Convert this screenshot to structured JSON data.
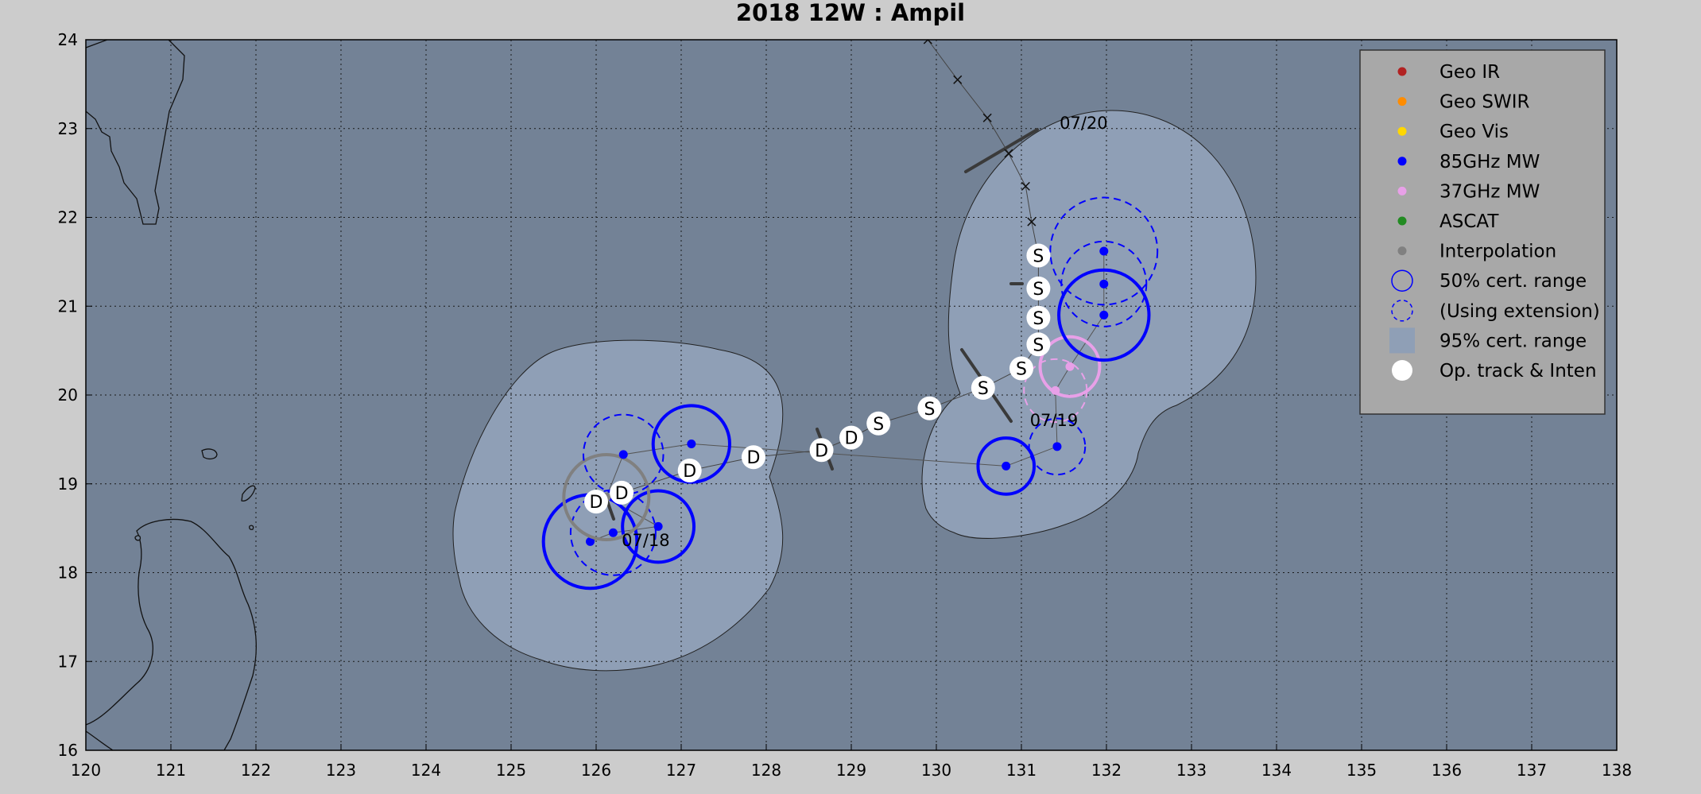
{
  "title": "2018  12W :  Ampil",
  "colors": {
    "background": "#cccccc",
    "ocean": "#738296",
    "confidence95": "#8f9fb6",
    "mw85": "#0000ff",
    "mw37": "#e8a0e8",
    "interp": "#808080",
    "geo_ir": "#b22222",
    "geo_swir": "#ff8c00",
    "geo_vis": "#ffd700",
    "ascat": "#228b22"
  },
  "axes": {
    "x_ticks": [
      "120",
      "121",
      "122",
      "123",
      "124",
      "125",
      "126",
      "127",
      "128",
      "129",
      "130",
      "131",
      "132",
      "133",
      "134",
      "135",
      "136",
      "137",
      "138"
    ],
    "y_ticks": [
      "16",
      "17",
      "18",
      "19",
      "20",
      "21",
      "22",
      "23",
      "24"
    ],
    "lon_range": [
      120,
      138
    ],
    "lat_range": [
      16,
      24
    ],
    "grid": true
  },
  "legend": {
    "position": "top-right",
    "items": [
      {
        "label": "Geo IR",
        "symbol": "dot",
        "color": "#b22222"
      },
      {
        "label": "Geo SWIR",
        "symbol": "dot",
        "color": "#ff8c00"
      },
      {
        "label": "Geo Vis",
        "symbol": "dot",
        "color": "#ffd700"
      },
      {
        "label": "85GHz MW",
        "symbol": "dot",
        "color": "#0000ff"
      },
      {
        "label": "37GHz MW",
        "symbol": "dot",
        "color": "#e8a0e8"
      },
      {
        "label": "ASCAT",
        "symbol": "dot",
        "color": "#228b22"
      },
      {
        "label": "Interpolation",
        "symbol": "dot",
        "color": "#808080"
      },
      {
        "label": "50% cert. range",
        "symbol": "circle",
        "color": "#0000ff"
      },
      {
        "label": "(Using extension)",
        "symbol": "dashed-circle",
        "color": "#0000ff"
      },
      {
        "label": "95% cert. range",
        "symbol": "square",
        "color": "#8f9fb6"
      },
      {
        "label": "Op. track & Inten",
        "symbol": "white-dot",
        "color": "#ffffff"
      }
    ]
  },
  "date_labels": [
    {
      "text": "07/18",
      "lon": 126.3,
      "lat": 18.3
    },
    {
      "text": "07/19",
      "lon": 131.1,
      "lat": 19.65
    },
    {
      "text": "07/20",
      "lon": 131.45,
      "lat": 23.0
    }
  ],
  "op_track": [
    {
      "lon": 126.0,
      "lat": 18.8,
      "label": "D"
    },
    {
      "lon": 126.3,
      "lat": 18.9,
      "label": "D"
    },
    {
      "lon": 127.1,
      "lat": 19.15,
      "label": "D"
    },
    {
      "lon": 127.85,
      "lat": 19.3,
      "label": "D"
    },
    {
      "lon": 128.65,
      "lat": 19.38,
      "label": "D"
    },
    {
      "lon": 129.0,
      "lat": 19.52,
      "label": "D"
    },
    {
      "lon": 129.32,
      "lat": 19.68,
      "label": "S"
    },
    {
      "lon": 129.92,
      "lat": 19.85,
      "label": "S"
    },
    {
      "lon": 130.55,
      "lat": 20.08,
      "label": "S"
    },
    {
      "lon": 131.0,
      "lat": 20.3,
      "label": "S"
    },
    {
      "lon": 131.2,
      "lat": 20.57,
      "label": "S"
    },
    {
      "lon": 131.2,
      "lat": 20.87,
      "label": "S"
    },
    {
      "lon": 131.2,
      "lat": 21.2,
      "label": "S"
    },
    {
      "lon": 131.2,
      "lat": 21.57,
      "label": "S"
    }
  ],
  "forecast_marks": [
    {
      "lon": 131.12,
      "lat": 21.95
    },
    {
      "lon": 131.05,
      "lat": 22.35
    },
    {
      "lon": 130.85,
      "lat": 22.72
    },
    {
      "lon": 130.6,
      "lat": 23.12
    },
    {
      "lon": 130.25,
      "lat": 23.55
    },
    {
      "lon": 129.9,
      "lat": 24.0
    }
  ],
  "fixes": [
    {
      "type": "mw85",
      "lon": 125.93,
      "lat": 18.35,
      "radius": 0.55,
      "style": "solid"
    },
    {
      "type": "mw85",
      "lon": 126.2,
      "lat": 18.45,
      "radius": 0.5,
      "style": "dashed"
    },
    {
      "type": "mw85",
      "lon": 126.73,
      "lat": 18.52,
      "radius": 0.42,
      "style": "solid"
    },
    {
      "type": "interp",
      "lon": 126.12,
      "lat": 18.85,
      "radius": 0.5,
      "style": "solid"
    },
    {
      "type": "mw85",
      "lon": 126.32,
      "lat": 19.33,
      "radius": 0.47,
      "style": "dashed"
    },
    {
      "type": "mw85",
      "lon": 127.12,
      "lat": 19.45,
      "radius": 0.45,
      "style": "solid"
    },
    {
      "type": "mw85",
      "lon": 130.82,
      "lat": 19.2,
      "radius": 0.33,
      "style": "solid"
    },
    {
      "type": "mw85",
      "lon": 131.42,
      "lat": 19.42,
      "radius": 0.33,
      "style": "dashed"
    },
    {
      "type": "mw37",
      "lon": 131.4,
      "lat": 20.05,
      "radius": 0.37,
      "style": "dashed"
    },
    {
      "type": "mw37",
      "lon": 131.57,
      "lat": 20.32,
      "radius": 0.35,
      "style": "solid"
    },
    {
      "type": "mw85",
      "lon": 131.97,
      "lat": 20.9,
      "radius": 0.53,
      "style": "solid"
    },
    {
      "type": "mw85",
      "lon": 131.97,
      "lat": 21.25,
      "radius": 0.5,
      "style": "dashed"
    },
    {
      "type": "mw85",
      "lon": 131.97,
      "lat": 21.62,
      "radius": 0.63,
      "style": "dashed"
    }
  ]
}
